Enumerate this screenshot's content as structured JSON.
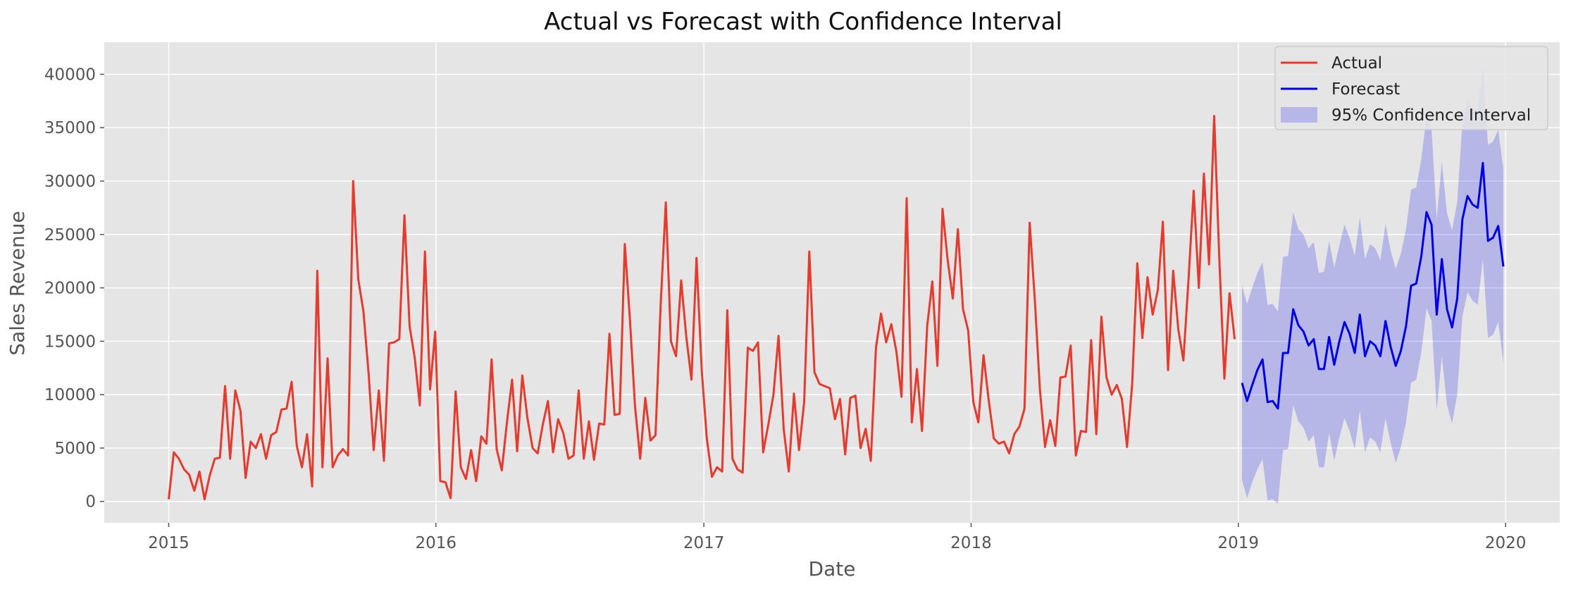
{
  "chart_data": {
    "type": "line",
    "title": "Actual vs Forecast with Confidence Interval",
    "xlabel": "Date",
    "ylabel": "Sales Revenue",
    "xlim": [
      "2014-10-05",
      "2020-03-15"
    ],
    "ylim": [
      -2000,
      43000
    ],
    "x_ticks": [
      "2015-01-01",
      "2016-01-01",
      "2017-01-01",
      "2018-01-01",
      "2019-01-01",
      "2020-01-01"
    ],
    "x_tick_labels": [
      "2015",
      "2016",
      "2017",
      "2018",
      "2019",
      "2020"
    ],
    "y_ticks": [
      0,
      5000,
      10000,
      15000,
      20000,
      25000,
      30000,
      35000,
      40000
    ],
    "y_tick_labels": [
      "0",
      "5000",
      "10000",
      "15000",
      "20000",
      "25000",
      "30000",
      "35000",
      "40000"
    ],
    "grid": true,
    "legend_position": "top-right",
    "colors": {
      "actual": "#e8392b",
      "forecast": "#0000ee",
      "ci_fill": "#0000ee",
      "plot_bg": "#e5e5e5",
      "grid": "#ffffff"
    },
    "series": [
      {
        "name": "Actual",
        "x_start": "2015-01-01",
        "freq": "weekly",
        "values": [
          200,
          4600,
          4000,
          3000,
          2500,
          1000,
          2800,
          200,
          2400,
          4000,
          4100,
          10800,
          4000,
          10400,
          8500,
          2200,
          5600,
          5000,
          6300,
          4000,
          6200,
          6500,
          8600,
          8700,
          11200,
          5200,
          3200,
          6300,
          1400,
          21600,
          3200,
          13400,
          3200,
          4300,
          4900,
          4300,
          30000,
          20800,
          17800,
          12000,
          4800,
          10400,
          3800,
          14800,
          14900,
          15200,
          26800,
          16400,
          13500,
          9000,
          23400,
          10500,
          15900,
          1900,
          1800,
          300,
          10300,
          3200,
          2100,
          4800,
          1900,
          6100,
          5400,
          13300,
          4900,
          2900,
          7400,
          11400,
          4700,
          11800,
          7800,
          5000,
          4500,
          7200,
          9400,
          4600,
          7700,
          6400,
          4000,
          4300,
          10400,
          4000,
          7500,
          3900,
          7300,
          7200,
          15700,
          8100,
          8200,
          24100,
          17000,
          8900,
          4000,
          9700,
          5700,
          6200,
          18400,
          28000,
          15000,
          13600,
          20700,
          15400,
          11400,
          22800,
          12400,
          5900,
          2300,
          3200,
          2800,
          17900,
          4000,
          3000,
          2700,
          14400,
          14100,
          14900,
          4600,
          7200,
          10000,
          15500,
          6800,
          2800,
          10100,
          4800,
          9300,
          23400,
          12100,
          11000,
          10800,
          10600,
          7700,
          9600,
          4400,
          9700,
          9900,
          5000,
          6800,
          3800,
          14400,
          17600,
          14900,
          16600,
          14000,
          9800,
          28400,
          7400,
          12400,
          6600,
          16400,
          20600,
          12700,
          27400,
          22600,
          19000,
          25500,
          18000,
          16000,
          9300,
          7400,
          13700,
          9500,
          5900,
          5400,
          5600,
          4500,
          6300,
          7000,
          8700,
          26100,
          18900,
          10500,
          5100,
          7600,
          5200,
          11600,
          11700,
          14600,
          4300,
          6600,
          6500,
          15100,
          6300,
          17300,
          11600,
          10000,
          10900,
          9600,
          5100,
          11000,
          22300,
          15300,
          21000,
          17500,
          19800,
          26200,
          12300,
          21600,
          16100,
          13200,
          20800,
          29100,
          20000,
          30700,
          22200,
          36100,
          22700,
          11500,
          19500,
          15200
        ]
      },
      {
        "name": "Forecast",
        "x": [
          "2019-01-06",
          "2019-01-13",
          "2019-01-20",
          "2019-01-27",
          "2019-02-03",
          "2019-02-10",
          "2019-02-17",
          "2019-02-24",
          "2019-03-03",
          "2019-03-10",
          "2019-03-17",
          "2019-03-24",
          "2019-03-31",
          "2019-04-07",
          "2019-04-14",
          "2019-04-21",
          "2019-04-28",
          "2019-05-05",
          "2019-05-12",
          "2019-05-19",
          "2019-05-26",
          "2019-06-02",
          "2019-06-09",
          "2019-06-16",
          "2019-06-23",
          "2019-06-30",
          "2019-07-07",
          "2019-07-14",
          "2019-07-21",
          "2019-07-28",
          "2019-08-04",
          "2019-08-11",
          "2019-08-18",
          "2019-08-25",
          "2019-09-01",
          "2019-09-08",
          "2019-09-15",
          "2019-09-22",
          "2019-09-29",
          "2019-10-06",
          "2019-10-13",
          "2019-10-20",
          "2019-10-27",
          "2019-11-03",
          "2019-11-10",
          "2019-11-17",
          "2019-11-24",
          "2019-12-01",
          "2019-12-08",
          "2019-12-15",
          "2019-12-22",
          "2019-12-29"
        ],
        "values": [
          11100,
          9400,
          10900,
          12300,
          13300,
          9300,
          9400,
          8700,
          13900,
          13900,
          18000,
          16500,
          15900,
          14600,
          15200,
          12400,
          12400,
          15400,
          12800,
          15000,
          16800,
          15700,
          13900,
          17500,
          13600,
          15000,
          14600,
          13600,
          16900,
          14500,
          12700,
          14100,
          16400,
          20200,
          20400,
          23000,
          27100,
          25900,
          17500,
          22700,
          18000,
          16300,
          19000,
          26400,
          28600,
          27800,
          27500,
          31700,
          24400,
          24700,
          25800,
          22000
        ]
      }
    ],
    "confidence_interval": {
      "name": "95% Confidence Interval",
      "lower": [
        2000,
        300,
        1800,
        3000,
        4000,
        100,
        200,
        -200,
        4800,
        4900,
        9000,
        7500,
        6900,
        5600,
        6200,
        3200,
        3200,
        6400,
        3800,
        6000,
        7800,
        6600,
        4900,
        8500,
        4600,
        6000,
        5600,
        4600,
        7800,
        5500,
        3600,
        5100,
        7400,
        11100,
        11400,
        14000,
        18100,
        16900,
        8500,
        13600,
        9000,
        7300,
        10000,
        17300,
        19600,
        18800,
        18400,
        22700,
        15300,
        15600,
        16800,
        13000
      ],
      "upper": [
        20200,
        18500,
        20000,
        21400,
        22400,
        18400,
        18500,
        17800,
        22900,
        23000,
        27100,
        25500,
        25000,
        23700,
        24300,
        21400,
        21500,
        24400,
        21900,
        24000,
        25900,
        24700,
        23000,
        26600,
        22700,
        24100,
        23700,
        22600,
        26000,
        23500,
        21800,
        23200,
        25500,
        29200,
        29400,
        32100,
        36100,
        34900,
        26500,
        31800,
        27000,
        25400,
        28100,
        35500,
        37600,
        36800,
        36600,
        40700,
        33400,
        33700,
        34800,
        31100
      ]
    }
  }
}
